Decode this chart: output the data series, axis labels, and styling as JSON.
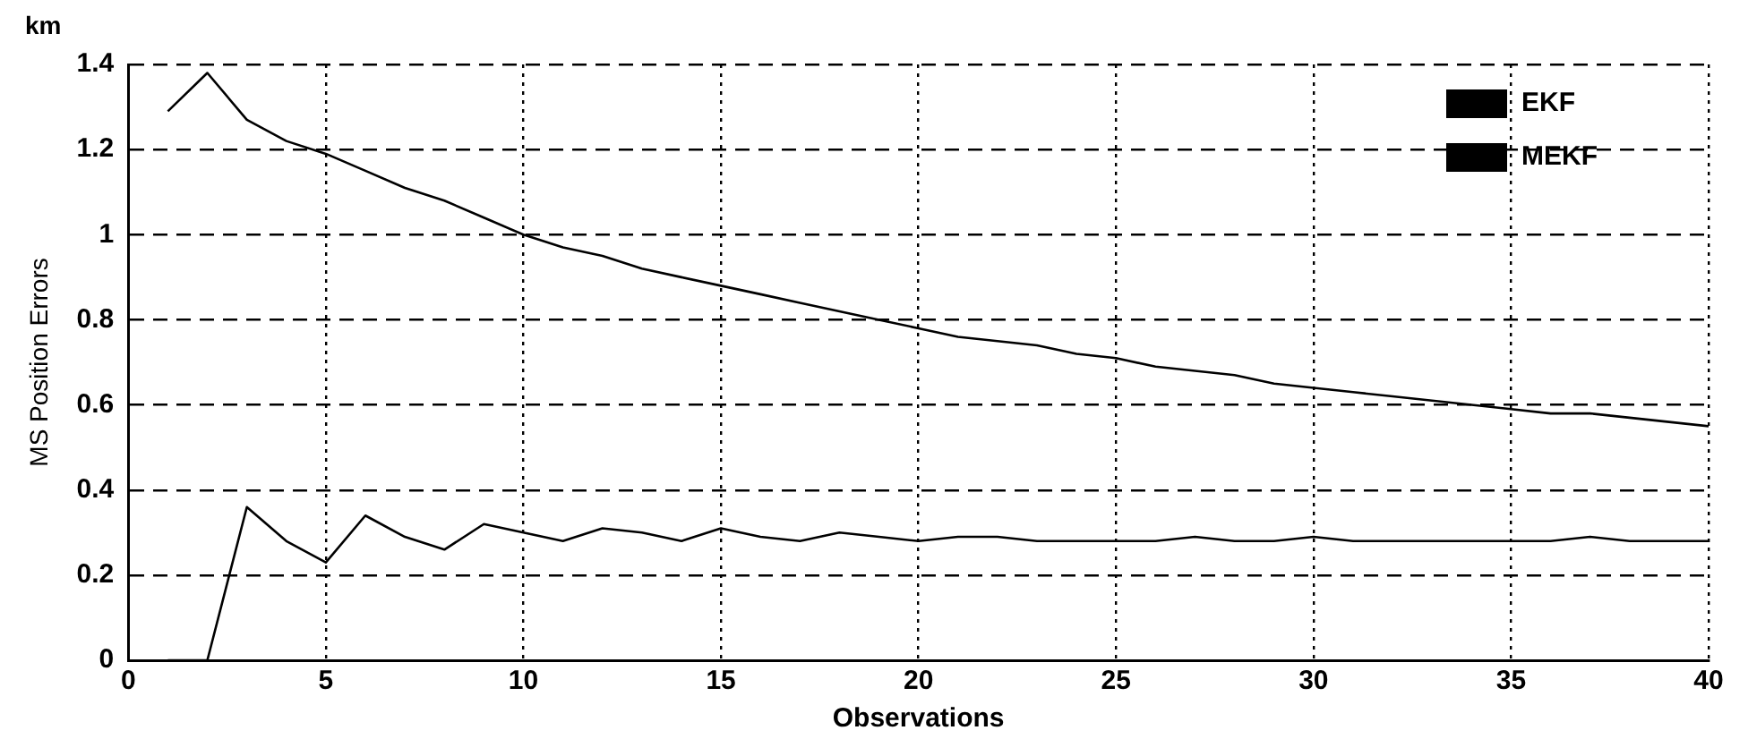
{
  "chart_data": {
    "type": "line",
    "xlabel": "Observations",
    "ylabel": "MS Position Errors",
    "annotations": [
      "km"
    ],
    "x": [
      1,
      2,
      3,
      4,
      5,
      6,
      7,
      8,
      9,
      10,
      11,
      12,
      13,
      14,
      15,
      16,
      17,
      18,
      19,
      20,
      21,
      22,
      23,
      24,
      25,
      26,
      27,
      28,
      29,
      30,
      31,
      32,
      33,
      34,
      35,
      36,
      37,
      38,
      39,
      40
    ],
    "series": [
      {
        "name": "EKF",
        "color": "#000000",
        "values": [
          1.29,
          1.38,
          1.27,
          1.22,
          1.19,
          1.15,
          1.11,
          1.08,
          1.04,
          1.0,
          0.97,
          0.95,
          0.92,
          0.9,
          0.88,
          0.86,
          0.84,
          0.82,
          0.8,
          0.78,
          0.76,
          0.75,
          0.74,
          0.72,
          0.71,
          0.69,
          0.68,
          0.67,
          0.65,
          0.64,
          0.63,
          0.62,
          0.61,
          0.6,
          0.59,
          0.58,
          0.58,
          0.57,
          0.56,
          0.55
        ]
      },
      {
        "name": "MEKF",
        "color": "#000000",
        "values": [
          0,
          0,
          0.36,
          0.28,
          0.23,
          0.34,
          0.29,
          0.26,
          0.32,
          0.3,
          0.28,
          0.31,
          0.3,
          0.28,
          0.31,
          0.29,
          0.28,
          0.3,
          0.29,
          0.28,
          0.29,
          0.29,
          0.28,
          0.28,
          0.28,
          0.28,
          0.29,
          0.28,
          0.28,
          0.29,
          0.28,
          0.28,
          0.28,
          0.28,
          0.28,
          0.28,
          0.29,
          0.28,
          0.28,
          0.28
        ]
      }
    ],
    "xlim": [
      0,
      40
    ],
    "xticks": [
      0,
      5,
      10,
      15,
      20,
      25,
      30,
      35,
      40
    ],
    "ylim": [
      0,
      1.4
    ],
    "yticks": [
      0,
      0.2,
      0.4,
      0.6,
      0.8,
      1,
      1.2,
      1.4
    ],
    "grid": true,
    "legend": "top right",
    "marker": "none",
    "line_style": "solid"
  }
}
